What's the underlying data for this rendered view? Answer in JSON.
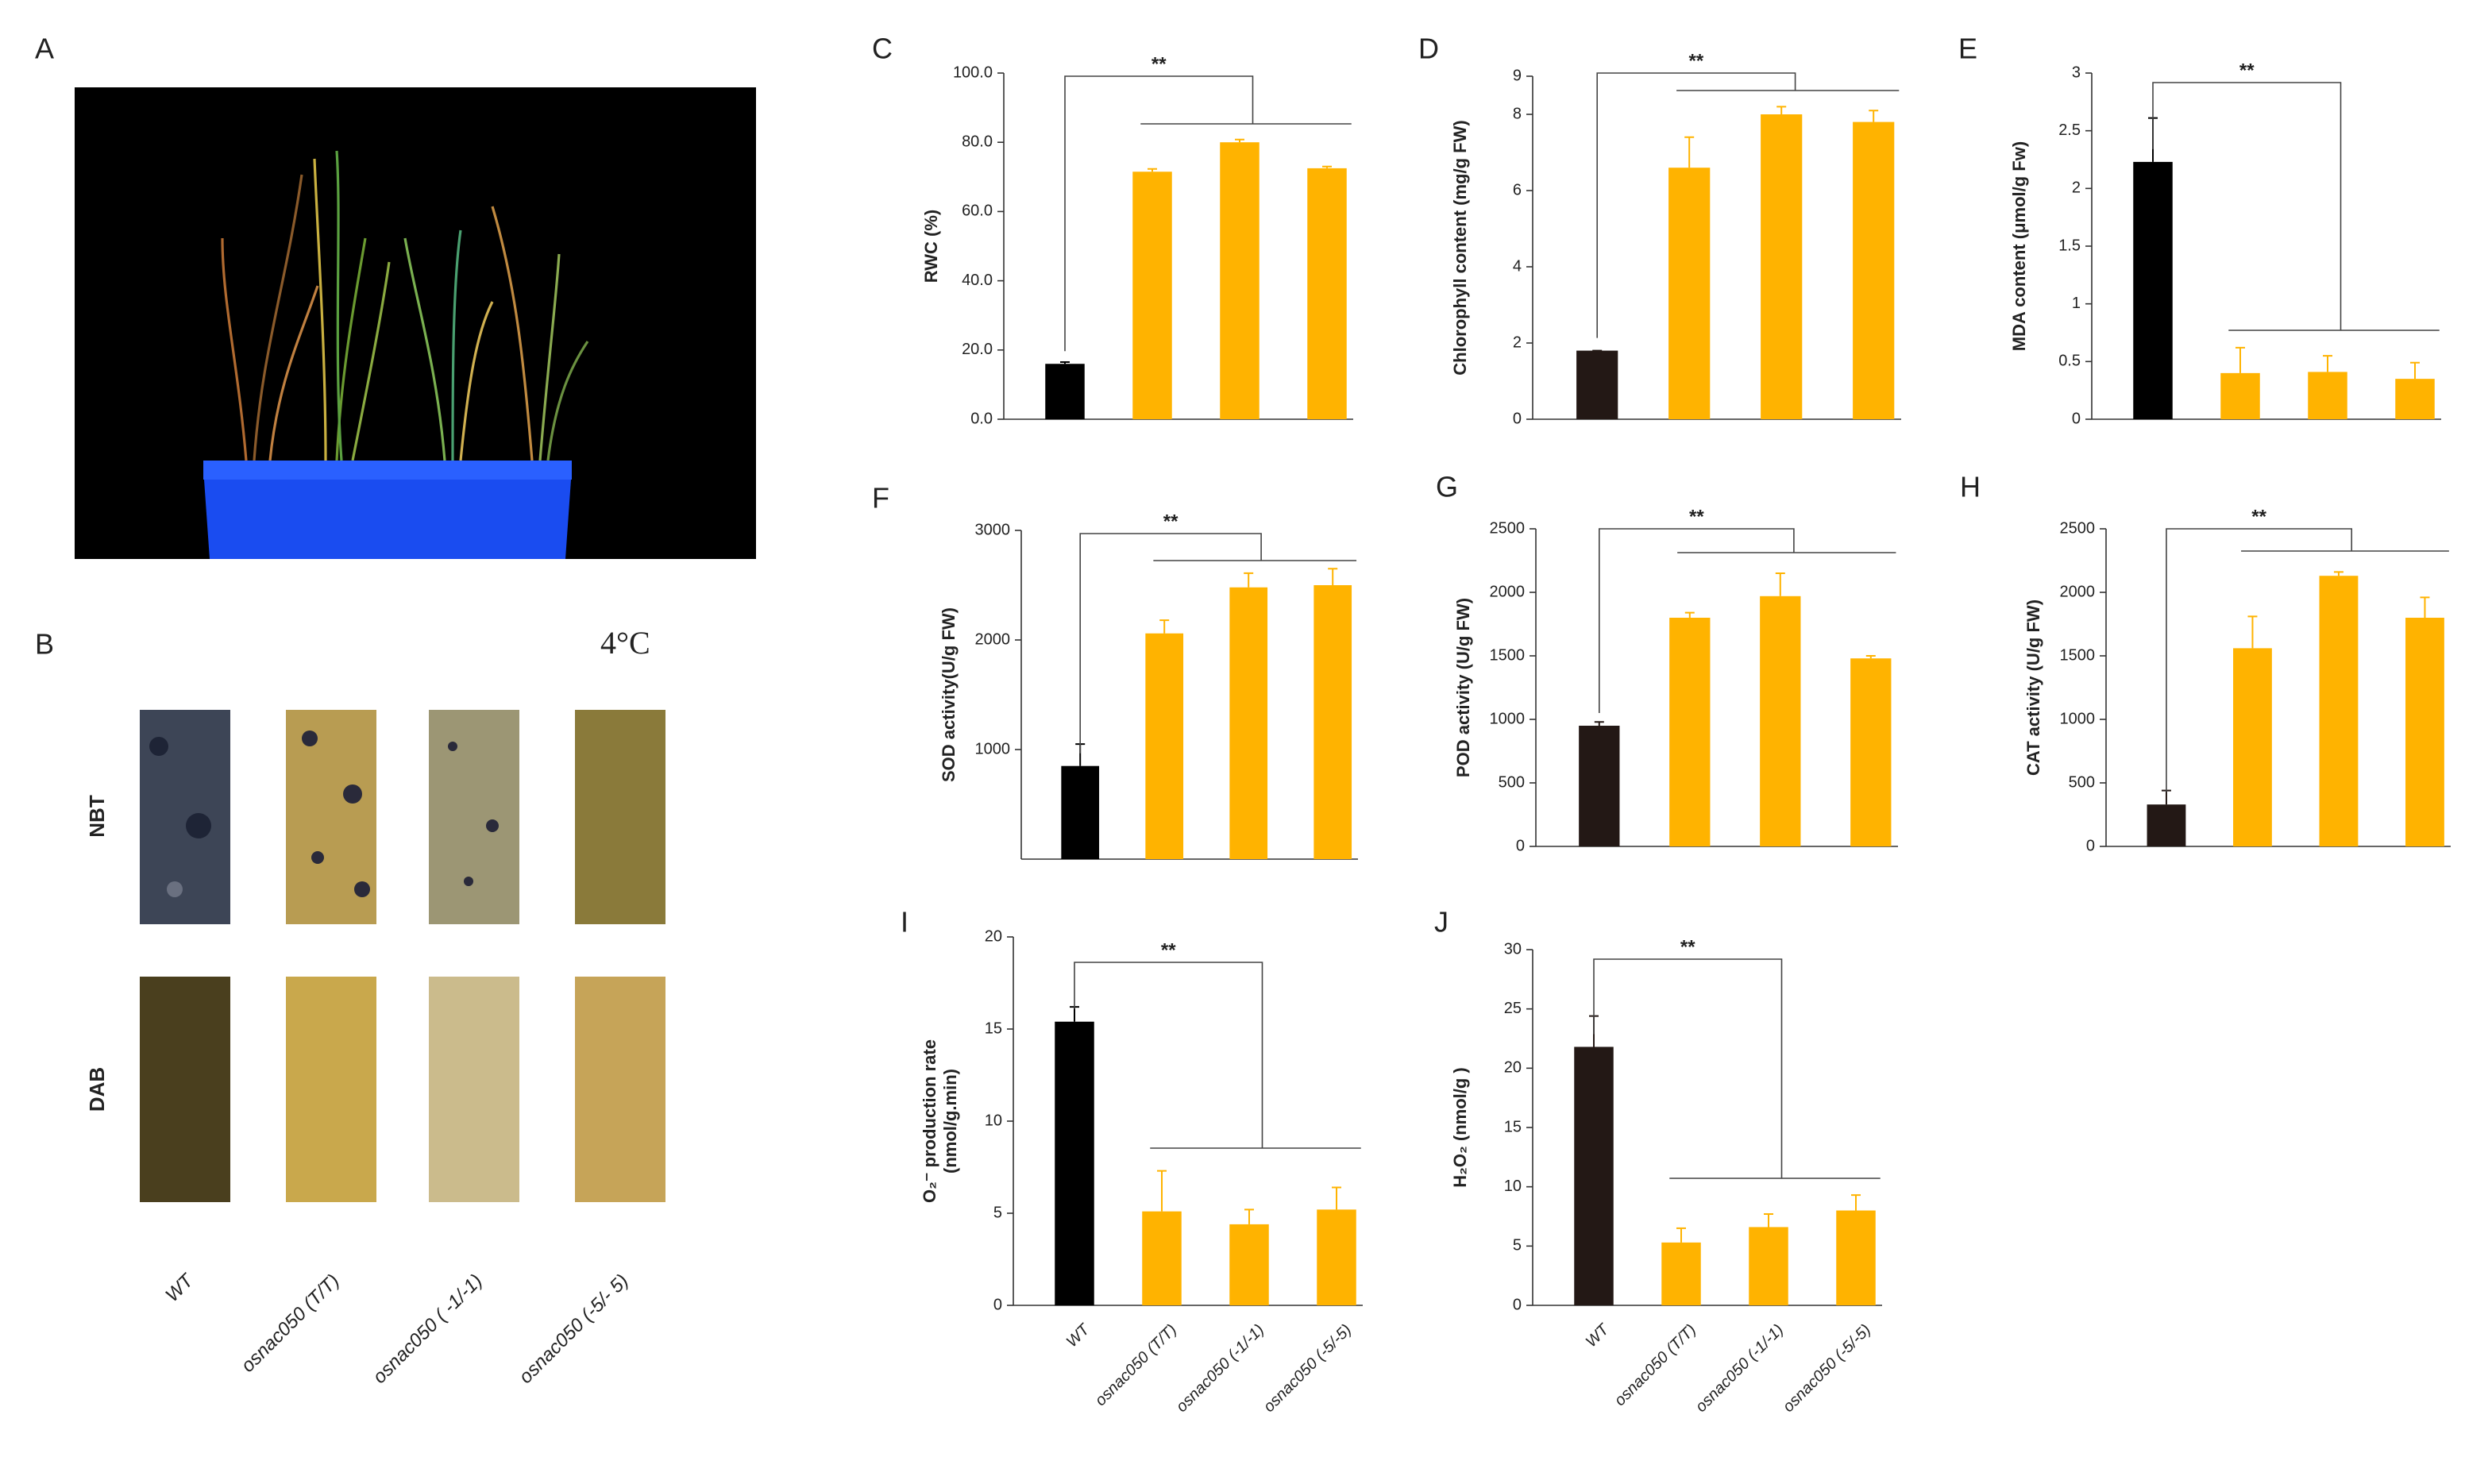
{
  "panel_labels": [
    "A",
    "B",
    "C",
    "D",
    "E",
    "F",
    "G",
    "H",
    "I",
    "J"
  ],
  "figure_b": {
    "condition": "4°C",
    "rows": [
      "NBT",
      "DAB"
    ],
    "samples": [
      "WT",
      "osnac050 (T/T)",
      "osnac050 ( -1/-1)",
      "osnac050 (-5/- 5)"
    ]
  },
  "chart_data": [
    {
      "type": "bar",
      "ylabel": "RWC  (%)",
      "categories": [
        null,
        null,
        null,
        null
      ],
      "values": [
        16,
        71.5,
        80,
        72.5
      ],
      "errors": [
        0.5,
        0.8,
        0.8,
        0.5
      ],
      "colors": [
        "#000000",
        "#ffb300",
        "#ffb300",
        "#ffb300"
      ],
      "ylim": [
        0,
        100
      ],
      "yticks": [
        {
          "value": 0,
          "label": "0.0"
        },
        {
          "value": 20,
          "label": "20.0"
        },
        {
          "value": 40,
          "label": "40.0"
        },
        {
          "value": 60,
          "label": "60.0"
        },
        {
          "value": 80,
          "label": "80.0"
        },
        {
          "value": 100,
          "label": "100.0"
        }
      ],
      "annotation": "**"
    },
    {
      "type": "bar",
      "ylabel": "Chlorophyll  content  (mg/g FW)",
      "categories": [
        null,
        null,
        null,
        null
      ],
      "values": [
        1.8,
        6.6,
        8.0,
        7.8
      ],
      "errors": [
        0,
        0.8,
        0.2,
        0.3
      ],
      "colors": [
        "#231815",
        "#ffb300",
        "#ffb300",
        "#ffb300"
      ],
      "ylim": [
        0,
        9
      ],
      "yticks": [
        0,
        2,
        4,
        6,
        8,
        9
      ],
      "annotation": "**"
    },
    {
      "type": "bar",
      "ylabel": "MDA  content (μmol/g Fw)",
      "categories": [
        null,
        null,
        null,
        null
      ],
      "values": [
        2.23,
        0.4,
        0.41,
        0.35
      ],
      "errors": [
        0.38,
        0.22,
        0.14,
        0.14
      ],
      "colors": [
        "#000000",
        "#ffb300",
        "#ffb300",
        "#ffb300"
      ],
      "ylim": [
        0,
        3
      ],
      "yticks": [
        0,
        0.5,
        1,
        1.5,
        2,
        2.5,
        3
      ],
      "annotation": "**"
    },
    {
      "type": "bar",
      "ylabel": "SOD  activity(U/g FW)",
      "categories": [
        null,
        null,
        null,
        null
      ],
      "values": [
        850,
        2060,
        2480,
        2500
      ],
      "errors": [
        200,
        120,
        130,
        150
      ],
      "colors": [
        "#000000",
        "#ffb300",
        "#ffb300",
        "#ffb300"
      ],
      "ylim": [
        0,
        3000
      ],
      "yticks": [
        1000,
        2000,
        3000
      ],
      "annotation": "**"
    },
    {
      "type": "bar",
      "ylabel": "POD  activity  (U/g FW)",
      "categories": [
        null,
        null,
        null,
        null
      ],
      "values": [
        950,
        1800,
        1970,
        1480
      ],
      "errors": [
        30,
        40,
        180,
        20
      ],
      "colors": [
        "#231815",
        "#ffb300",
        "#ffb300",
        "#ffb300"
      ],
      "ylim": [
        0,
        2500
      ],
      "yticks": [
        0,
        500,
        1000,
        1500,
        2000,
        2500
      ],
      "annotation": "**"
    },
    {
      "type": "bar",
      "ylabel": "CAT  activity   (U/g FW)",
      "categories": [
        null,
        null,
        null,
        null
      ],
      "values": [
        330,
        1560,
        2130,
        1800
      ],
      "errors": [
        110,
        250,
        30,
        160
      ],
      "colors": [
        "#231815",
        "#ffb300",
        "#ffb300",
        "#ffb300"
      ],
      "ylim": [
        0,
        2500
      ],
      "yticks": [
        0,
        500,
        1000,
        1500,
        2000,
        2500
      ],
      "annotation": "**"
    },
    {
      "type": "bar",
      "ylabel": [
        "O₂⁻ production rate",
        "(nmol/g.min)"
      ],
      "categories": [
        "WT",
        "osnac050 (T/T)",
        "osnac050  (-1/-1)",
        "osnac050 (-5/-5)"
      ],
      "values": [
        15.4,
        5.1,
        4.4,
        5.2
      ],
      "errors": [
        0.8,
        2.2,
        0.8,
        1.2
      ],
      "colors": [
        "#000000",
        "#ffb300",
        "#ffb300",
        "#ffb300"
      ],
      "ylim": [
        0,
        20
      ],
      "yticks": [
        0,
        5,
        10,
        15,
        20
      ],
      "annotation": "**"
    },
    {
      "type": "bar",
      "ylabel": "H₂O₂   (nmol/g )",
      "categories": [
        "WT",
        "osnac050 (T/T)",
        "osnac050 (-1/-1)",
        "osnac050 (-5/-5)"
      ],
      "values": [
        21.8,
        5.3,
        6.6,
        8.0
      ],
      "errors": [
        2.6,
        1.2,
        1.1,
        1.3
      ],
      "colors": [
        "#231815",
        "#ffb300",
        "#ffb300",
        "#ffb300"
      ],
      "ylim": [
        0,
        30
      ],
      "yticks": [
        0,
        5,
        10,
        15,
        20,
        25,
        30
      ],
      "annotation": "**"
    }
  ]
}
